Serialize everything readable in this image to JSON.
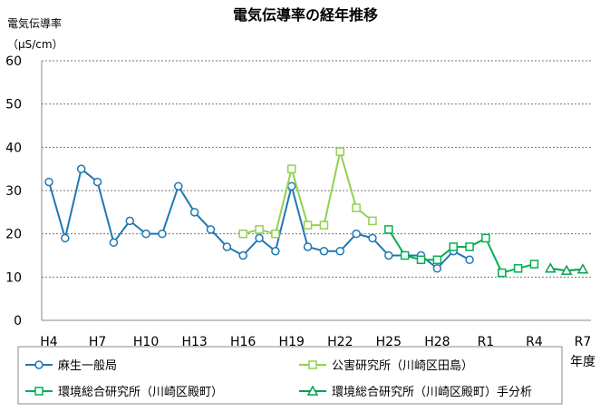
{
  "chart_data": {
    "type": "line",
    "title": "電気伝導率の経年推移",
    "ylabel_line1": "電気伝導率",
    "ylabel_line2": "（μS/cm）",
    "xlabel": "年度",
    "ylim": [
      0,
      60
    ],
    "yticks": [
      0,
      10,
      20,
      30,
      40,
      50,
      60
    ],
    "grid": true,
    "legend_position": "bottom",
    "x_categories": [
      "H4",
      "H5",
      "H6",
      "H7",
      "H8",
      "H9",
      "H10",
      "H11",
      "H12",
      "H13",
      "H14",
      "H15",
      "H16",
      "H17",
      "H18",
      "H19",
      "H20",
      "H21",
      "H22",
      "H23",
      "H24",
      "H25",
      "H26",
      "H27",
      "H28",
      "H29",
      "H30",
      "R1",
      "R2",
      "R3",
      "R4",
      "R5",
      "R6",
      "R7"
    ],
    "x_tick_labels": [
      "H4",
      "H7",
      "H10",
      "H13",
      "H16",
      "H19",
      "H22",
      "H25",
      "H28",
      "R1",
      "R4",
      "R7"
    ],
    "series": [
      {
        "name": "麻生一般局",
        "color": "#1F78B4",
        "marker": "circle",
        "x": [
          "H4",
          "H5",
          "H6",
          "H7",
          "H8",
          "H9",
          "H10",
          "H11",
          "H12",
          "H13",
          "H14",
          "H15",
          "H16",
          "H17",
          "H18",
          "H19",
          "H20",
          "H21",
          "H22",
          "H23",
          "H24",
          "H25",
          "H26",
          "H27",
          "H28",
          "H29",
          "H30"
        ],
        "values": [
          32,
          19,
          35,
          32,
          18,
          23,
          20,
          20,
          31,
          25,
          21,
          17,
          15,
          19,
          16,
          31,
          17,
          16,
          16,
          20,
          19,
          15,
          15,
          15,
          12,
          16,
          14
        ]
      },
      {
        "name": "公害研究所（川崎区田島）",
        "color": "#92D050",
        "marker": "square",
        "x": [
          "H16",
          "H17",
          "H18",
          "H19",
          "H20",
          "H21",
          "H22",
          "H23",
          "H24"
        ],
        "values": [
          20,
          21,
          20,
          35,
          22,
          22,
          39,
          26,
          23
        ]
      },
      {
        "name": "環境総合研究所（川崎区殿町）",
        "color": "#00B050",
        "marker": "square",
        "x": [
          "H25",
          "H26",
          "H27",
          "H28",
          "H29",
          "H30",
          "R1",
          "R2",
          "R3",
          "R4"
        ],
        "values": [
          21,
          15,
          14,
          14,
          17,
          17,
          19,
          11,
          12,
          13
        ]
      },
      {
        "name": "環境総合研究所（川崎区殿町）手分析",
        "color": "#00A050",
        "marker": "triangle",
        "x": [
          "R5",
          "R6",
          "R7"
        ],
        "values": [
          12,
          11.5,
          11.8
        ]
      }
    ]
  }
}
